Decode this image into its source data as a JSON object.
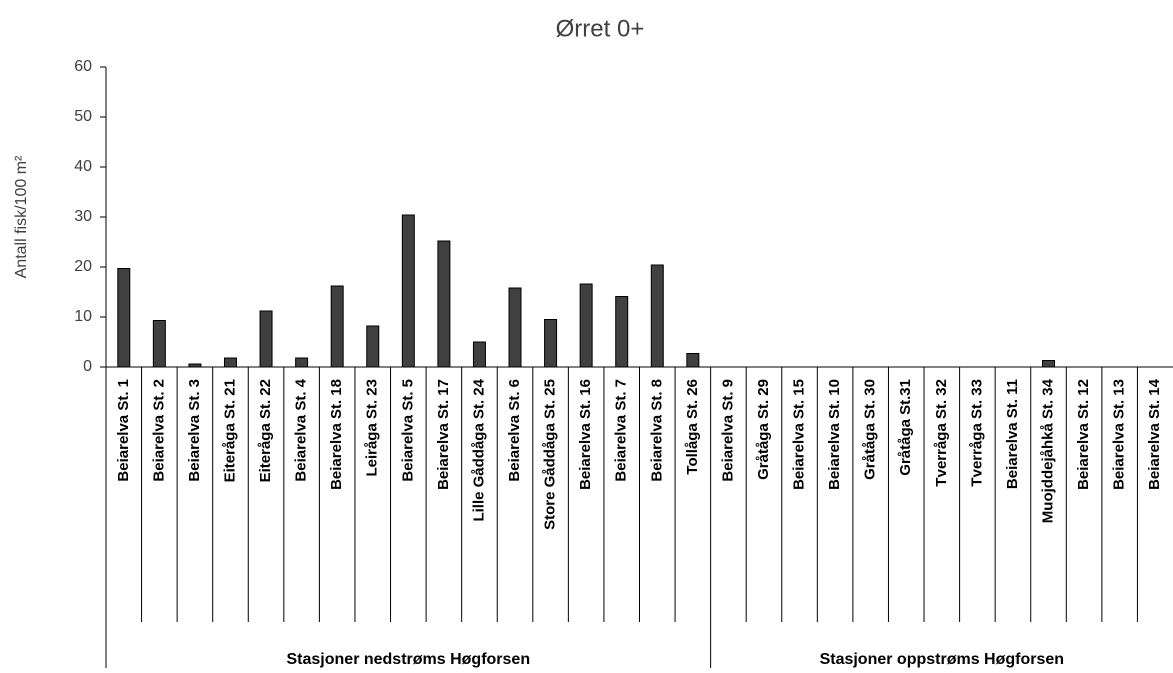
{
  "chart_data": {
    "type": "bar",
    "title": "Ørret 0+",
    "y_label": "Antall fisk/100 m²",
    "color": "#404040",
    "ylim": [
      0,
      60
    ],
    "yticks": [
      0,
      10,
      20,
      30,
      40,
      50,
      60
    ],
    "grid": false,
    "groups": [
      {
        "name": "Stasjoner nedstrøms Høgforsen",
        "categories": [
          "Beiarelva St. 1",
          "Beiarelva St. 2",
          "Beiarelva St. 3",
          "Eiteråga St. 21",
          "Eiteråga St. 22",
          "Beiarelva St. 4",
          "Beiarelva St. 18",
          "Leiråga St. 23",
          "Beiarelva St. 5",
          "Beiarelva St. 17",
          "Lille Gåddåga St. 24",
          "Beiarelva St. 6",
          "Store Gåddåga St. 25",
          "Beiarelva St. 16",
          "Beiarelva St. 7",
          "Beiarelva St. 8",
          "Tollåga St. 26"
        ],
        "values": [
          19.7,
          9.3,
          0.6,
          1.8,
          11.2,
          1.8,
          16.2,
          8.2,
          30.4,
          25.2,
          5.0,
          15.8,
          9.5,
          16.6,
          14.1,
          20.4,
          2.7
        ]
      },
      {
        "name": "Stasjoner oppstrøms Høgforsen",
        "categories": [
          "Beiarelva St. 9",
          "Gråtåga St. 29",
          "Beiarelva St. 15",
          "Beiarelva St. 10",
          "Gråtåga St. 30",
          "Gråtåga St.31",
          "Tverråga St. 32",
          "Tverråga St. 33",
          "Beiarelva St. 11",
          "Muojddejåhkå St. 34",
          "Beiarelva St. 12",
          "Beiarelva St. 13",
          "Beiarelva St. 14"
        ],
        "values": [
          0,
          0,
          0,
          0,
          0,
          0,
          0,
          0,
          0,
          1.3,
          0,
          0,
          0
        ]
      }
    ]
  }
}
